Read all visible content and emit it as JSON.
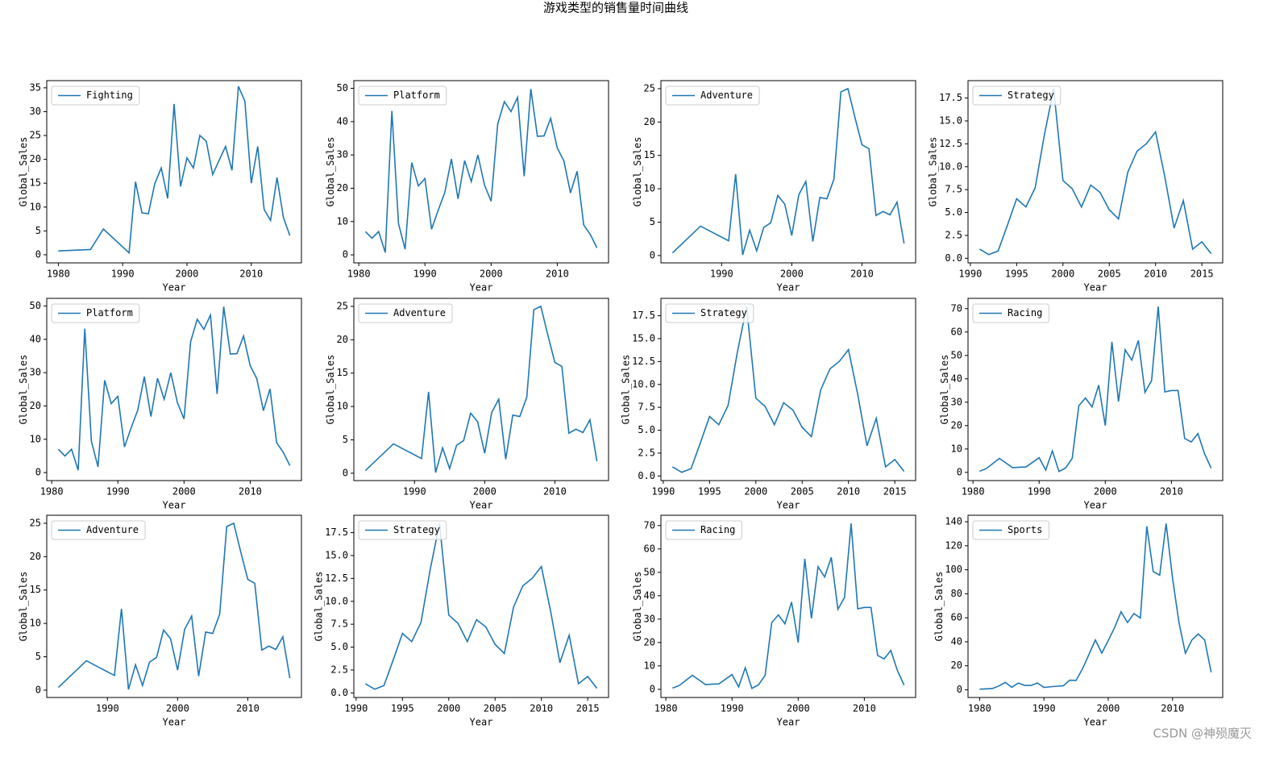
{
  "title": "游戏类型的销售量时间曲线",
  "watermark": "CSDN @神殒魔灭",
  "chart_data": [
    {
      "type": "line",
      "xlabel": "Year",
      "ylabel": "Global_Sales",
      "legend": "upper left",
      "x": [
        1980,
        1985,
        1987,
        1991,
        1992,
        1993,
        1994,
        1995,
        1996,
        1997,
        1998,
        1999,
        2000,
        2001,
        2002,
        2003,
        2004,
        2005,
        2006,
        2007,
        2008,
        2009,
        2010,
        2011,
        2012,
        2013,
        2014,
        2015,
        2016
      ],
      "series": [
        {
          "name": "Fighting",
          "color": "#1f77b4",
          "values": [
            0.8,
            1.1,
            5.4,
            0.4,
            15.3,
            8.8,
            8.6,
            14.9,
            18.2,
            11.8,
            31.6,
            14.3,
            20.3,
            18.2,
            25,
            23.8,
            16.8,
            19.8,
            22.7,
            17.7,
            35.3,
            32.2,
            15,
            22.7,
            9.5,
            7.2,
            16.2,
            7.8,
            4
          ]
        }
      ],
      "xlim": [
        1978.2,
        2017.8
      ],
      "xticks": [
        1980,
        1990,
        2000,
        2010
      ],
      "ylim": [
        -1.7,
        36.5
      ],
      "yticks": [
        0,
        5,
        10,
        15,
        20,
        25,
        30,
        35
      ]
    },
    {
      "type": "line",
      "xlabel": "Year",
      "ylabel": "Global_Sales",
      "legend": "upper left",
      "x": [
        1981,
        1982,
        1983,
        1984,
        1985,
        1986,
        1987,
        1988,
        1989,
        1990,
        1991,
        1992,
        1993,
        1994,
        1995,
        1996,
        1997,
        1998,
        1999,
        2000,
        2001,
        2002,
        2003,
        2004,
        2005,
        2006,
        2007,
        2008,
        2009,
        2010,
        2011,
        2012,
        2013,
        2014,
        2015,
        2016
      ],
      "series": [
        {
          "name": "Platform",
          "color": "#1f77b4",
          "values": [
            7.0,
            5.0,
            7.0,
            0.7,
            43.2,
            9.4,
            1.7,
            27.7,
            20.7,
            22.9,
            7.7,
            13.4,
            18.7,
            28.8,
            16.8,
            28.3,
            22.0,
            30.0,
            21.0,
            16.1,
            39.3,
            46.0,
            43.0,
            47.3,
            23.6,
            49.8,
            35.6,
            35.7,
            41.0,
            32.1,
            28.2,
            18.6,
            25.1,
            9.0,
            6.1,
            2.1
          ]
        }
      ],
      "xlim": [
        1979.25,
        2017.75
      ],
      "xticks": [
        1980,
        1990,
        2000,
        2010
      ],
      "ylim": [
        -2.4,
        52.3
      ],
      "yticks": [
        0,
        10,
        20,
        30,
        40,
        50
      ]
    },
    {
      "type": "line",
      "xlabel": "Year",
      "ylabel": "Global_Sales",
      "legend": "upper left",
      "x": [
        1983,
        1987,
        1991,
        1992,
        1993,
        1994,
        1995,
        1996,
        1997,
        1998,
        1999,
        2000,
        2001,
        2002,
        2003,
        2004,
        2005,
        2006,
        2007,
        2008,
        2009,
        2010,
        2011,
        2012,
        2013,
        2014,
        2015,
        2016
      ],
      "series": [
        {
          "name": "Adventure",
          "color": "#1f77b4",
          "values": [
            0.4,
            4.4,
            2.2,
            12.2,
            0.1,
            3.8,
            0.7,
            4.2,
            4.9,
            9.0,
            7.7,
            3.0,
            9.1,
            11.1,
            2.1,
            8.7,
            8.5,
            11.4,
            24.5,
            25.0,
            20.7,
            16.6,
            16.0,
            6.0,
            6.6,
            6.1,
            8.0,
            1.8
          ]
        }
      ],
      "xlim": [
        1981.35,
        2017.65
      ],
      "xticks": [
        1990,
        2000,
        2010
      ],
      "ylim": [
        -1.1,
        26.2
      ],
      "yticks": [
        0,
        5,
        10,
        15,
        20,
        25
      ]
    },
    {
      "type": "line",
      "xlabel": "Year",
      "ylabel": "Global_Sales",
      "legend": "upper left",
      "x": [
        1991,
        1992,
        1993,
        1994,
        1995,
        1996,
        1997,
        1998,
        1999,
        2000,
        2001,
        2002,
        2003,
        2004,
        2005,
        2006,
        2007,
        2008,
        2009,
        2010,
        2011,
        2012,
        2013,
        2014,
        2015,
        2016
      ],
      "series": [
        {
          "name": "Strategy",
          "color": "#1f77b4",
          "values": [
            1.0,
            0.4,
            0.8,
            3.6,
            6.5,
            5.6,
            7.7,
            13.5,
            18.5,
            8.5,
            7.6,
            5.6,
            8.0,
            7.2,
            5.3,
            4.3,
            9.4,
            11.7,
            12.5,
            13.8,
            8.9,
            3.3,
            6.3,
            1.0,
            1.8,
            0.5
          ]
        }
      ],
      "xlim": [
        1989.75,
        2017.25
      ],
      "xticks": [
        1990,
        1995,
        2000,
        2005,
        2010,
        2015
      ],
      "ylim": [
        -0.5,
        19.4
      ],
      "yticks": [
        {
          "value": 0,
          "label": "0.0"
        },
        2.5,
        {
          "value": 5,
          "label": "5.0"
        },
        7.5,
        {
          "value": 10,
          "label": "10.0"
        },
        12.5,
        {
          "value": 15,
          "label": "15.0"
        },
        17.5
      ]
    },
    {
      "type": "line",
      "xlabel": "Year",
      "ylabel": "Global_Sales",
      "legend": "upper left",
      "x": [
        1981,
        1982,
        1983,
        1984,
        1985,
        1986,
        1987,
        1988,
        1989,
        1990,
        1991,
        1992,
        1993,
        1994,
        1995,
        1996,
        1997,
        1998,
        1999,
        2000,
        2001,
        2002,
        2003,
        2004,
        2005,
        2006,
        2007,
        2008,
        2009,
        2010,
        2011,
        2012,
        2013,
        2014,
        2015,
        2016
      ],
      "series": [
        {
          "name": "Platform",
          "color": "#1f77b4",
          "values": [
            7.0,
            5.0,
            7.0,
            0.7,
            43.2,
            9.4,
            1.7,
            27.7,
            20.7,
            22.9,
            7.7,
            13.4,
            18.7,
            28.8,
            16.8,
            28.3,
            22.0,
            30.0,
            21.0,
            16.1,
            39.3,
            46.0,
            43.0,
            47.3,
            23.6,
            49.8,
            35.6,
            35.7,
            41.0,
            32.1,
            28.2,
            18.6,
            25.1,
            9.0,
            6.1,
            2.1
          ]
        }
      ],
      "xlim": [
        1979.25,
        2017.75
      ],
      "xticks": [
        1980,
        1990,
        2000,
        2010
      ],
      "ylim": [
        -2.4,
        52.3
      ],
      "yticks": [
        0,
        10,
        20,
        30,
        40,
        50
      ]
    },
    {
      "type": "line",
      "xlabel": "Year",
      "ylabel": "Global_Sales",
      "legend": "upper left",
      "x": [
        1983,
        1987,
        1991,
        1992,
        1993,
        1994,
        1995,
        1996,
        1997,
        1998,
        1999,
        2000,
        2001,
        2002,
        2003,
        2004,
        2005,
        2006,
        2007,
        2008,
        2009,
        2010,
        2011,
        2012,
        2013,
        2014,
        2015,
        2016
      ],
      "series": [
        {
          "name": "Adventure",
          "color": "#1f77b4",
          "values": [
            0.4,
            4.4,
            2.2,
            12.2,
            0.1,
            3.8,
            0.7,
            4.2,
            4.9,
            9.0,
            7.7,
            3.0,
            9.1,
            11.1,
            2.1,
            8.7,
            8.5,
            11.4,
            24.5,
            25.0,
            20.7,
            16.6,
            16.0,
            6.0,
            6.6,
            6.1,
            8.0,
            1.8
          ]
        }
      ],
      "xlim": [
        1981.35,
        2017.65
      ],
      "xticks": [
        1990,
        2000,
        2010
      ],
      "ylim": [
        -1.1,
        26.2
      ],
      "yticks": [
        0,
        5,
        10,
        15,
        20,
        25
      ]
    },
    {
      "type": "line",
      "xlabel": "Year",
      "ylabel": "Global_Sales",
      "legend": "upper left",
      "x": [
        1991,
        1992,
        1993,
        1994,
        1995,
        1996,
        1997,
        1998,
        1999,
        2000,
        2001,
        2002,
        2003,
        2004,
        2005,
        2006,
        2007,
        2008,
        2009,
        2010,
        2011,
        2012,
        2013,
        2014,
        2015,
        2016
      ],
      "series": [
        {
          "name": "Strategy",
          "color": "#1f77b4",
          "values": [
            1.0,
            0.4,
            0.8,
            3.6,
            6.5,
            5.6,
            7.7,
            13.5,
            18.5,
            8.5,
            7.6,
            5.6,
            8.0,
            7.2,
            5.3,
            4.3,
            9.4,
            11.7,
            12.5,
            13.8,
            8.9,
            3.3,
            6.3,
            1.0,
            1.8,
            0.5
          ]
        }
      ],
      "xlim": [
        1989.75,
        2017.25
      ],
      "xticks": [
        1990,
        1995,
        2000,
        2005,
        2010,
        2015
      ],
      "ylim": [
        -0.5,
        19.4
      ],
      "yticks": [
        {
          "value": 0,
          "label": "0.0"
        },
        2.5,
        {
          "value": 5,
          "label": "5.0"
        },
        7.5,
        {
          "value": 10,
          "label": "10.0"
        },
        12.5,
        {
          "value": 15,
          "label": "15.0"
        },
        17.5
      ]
    },
    {
      "type": "line",
      "xlabel": "Year",
      "ylabel": "Global_Sales",
      "legend": "upper left",
      "x": [
        1981,
        1982,
        1984,
        1986,
        1987,
        1988,
        1990,
        1991,
        1992,
        1993,
        1994,
        1995,
        1996,
        1997,
        1998,
        1999,
        2000,
        2001,
        2002,
        2003,
        2004,
        2005,
        2006,
        2007,
        2008,
        2009,
        2010,
        2011,
        2012,
        2013,
        2014,
        2015,
        2016
      ],
      "series": [
        {
          "name": "Racing",
          "color": "#1f77b4",
          "values": [
            0.5,
            1.6,
            6.0,
            2.0,
            2.2,
            2.3,
            6.3,
            1.0,
            9.2,
            0.4,
            1.9,
            6.0,
            28.5,
            31.8,
            28.0,
            37.3,
            20.0,
            55.8,
            30.3,
            52.4,
            48.0,
            56.4,
            34.2,
            39.3,
            70.9,
            34.4,
            35.0,
            35.0,
            14.5,
            13.0,
            16.6,
            8.0,
            1.8
          ]
        }
      ],
      "xlim": [
        1979.25,
        2017.75
      ],
      "xticks": [
        1980,
        1990,
        2000,
        2010
      ],
      "ylim": [
        -3.5,
        74.4
      ],
      "yticks": [
        0,
        10,
        20,
        30,
        40,
        50,
        60,
        70
      ]
    },
    {
      "type": "line",
      "xlabel": "Year",
      "ylabel": "Global_Sales",
      "legend": "upper left",
      "x": [
        1983,
        1987,
        1991,
        1992,
        1993,
        1994,
        1995,
        1996,
        1997,
        1998,
        1999,
        2000,
        2001,
        2002,
        2003,
        2004,
        2005,
        2006,
        2007,
        2008,
        2009,
        2010,
        2011,
        2012,
        2013,
        2014,
        2015,
        2016
      ],
      "series": [
        {
          "name": "Adventure",
          "color": "#1f77b4",
          "values": [
            0.4,
            4.4,
            2.2,
            12.2,
            0.1,
            3.8,
            0.7,
            4.2,
            4.9,
            9.0,
            7.7,
            3.0,
            9.1,
            11.1,
            2.1,
            8.7,
            8.5,
            11.4,
            24.5,
            25.0,
            20.7,
            16.6,
            16.0,
            6.0,
            6.6,
            6.1,
            8.0,
            1.8
          ]
        }
      ],
      "xlim": [
        1981.35,
        2017.65
      ],
      "xticks": [
        1990,
        2000,
        2010
      ],
      "ylim": [
        -1.1,
        26.2
      ],
      "yticks": [
        0,
        5,
        10,
        15,
        20,
        25
      ]
    },
    {
      "type": "line",
      "xlabel": "Year",
      "ylabel": "Global_Sales",
      "legend": "upper left",
      "x": [
        1991,
        1992,
        1993,
        1994,
        1995,
        1996,
        1997,
        1998,
        1999,
        2000,
        2001,
        2002,
        2003,
        2004,
        2005,
        2006,
        2007,
        2008,
        2009,
        2010,
        2011,
        2012,
        2013,
        2014,
        2015,
        2016
      ],
      "series": [
        {
          "name": "Strategy",
          "color": "#1f77b4",
          "values": [
            1.0,
            0.4,
            0.8,
            3.6,
            6.5,
            5.6,
            7.7,
            13.5,
            18.5,
            8.5,
            7.6,
            5.6,
            8.0,
            7.2,
            5.3,
            4.3,
            9.4,
            11.7,
            12.5,
            13.8,
            8.9,
            3.3,
            6.3,
            1.0,
            1.8,
            0.5
          ]
        }
      ],
      "xlim": [
        1989.75,
        2017.25
      ],
      "xticks": [
        1990,
        1995,
        2000,
        2005,
        2010,
        2015
      ],
      "ylim": [
        -0.5,
        19.4
      ],
      "yticks": [
        {
          "value": 0,
          "label": "0.0"
        },
        2.5,
        {
          "value": 5,
          "label": "5.0"
        },
        7.5,
        {
          "value": 10,
          "label": "10.0"
        },
        12.5,
        {
          "value": 15,
          "label": "15.0"
        },
        17.5
      ]
    },
    {
      "type": "line",
      "xlabel": "Year",
      "ylabel": "Global_Sales",
      "legend": "upper left",
      "x": [
        1981,
        1982,
        1984,
        1986,
        1987,
        1988,
        1990,
        1991,
        1992,
        1993,
        1994,
        1995,
        1996,
        1997,
        1998,
        1999,
        2000,
        2001,
        2002,
        2003,
        2004,
        2005,
        2006,
        2007,
        2008,
        2009,
        2010,
        2011,
        2012,
        2013,
        2014,
        2015,
        2016
      ],
      "series": [
        {
          "name": "Racing",
          "color": "#1f77b4",
          "values": [
            0.5,
            1.6,
            6.0,
            2.0,
            2.2,
            2.3,
            6.3,
            1.0,
            9.2,
            0.4,
            1.9,
            6.0,
            28.5,
            31.8,
            28.0,
            37.3,
            20.0,
            55.8,
            30.3,
            52.4,
            48.0,
            56.4,
            34.2,
            39.3,
            70.9,
            34.4,
            35.0,
            35.0,
            14.5,
            13.0,
            16.6,
            8.0,
            1.8
          ]
        }
      ],
      "xlim": [
        1979.25,
        2017.75
      ],
      "xticks": [
        1980,
        1990,
        2000,
        2010
      ],
      "ylim": [
        -3.5,
        74.4
      ],
      "yticks": [
        0,
        10,
        20,
        30,
        40,
        50,
        60,
        70
      ]
    },
    {
      "type": "line",
      "xlabel": "Year",
      "ylabel": "Global_Sales",
      "legend": "upper left",
      "x": [
        1980,
        1981,
        1982,
        1983,
        1984,
        1985,
        1986,
        1987,
        1988,
        1989,
        1990,
        1991,
        1992,
        1993,
        1994,
        1995,
        1996,
        1997,
        1998,
        1999,
        2000,
        2001,
        2002,
        2003,
        2004,
        2005,
        2006,
        2007,
        2008,
        2009,
        2010,
        2011,
        2012,
        2013,
        2014,
        2015,
        2016
      ],
      "series": [
        {
          "name": "Sports",
          "color": "#1f77b4",
          "values": [
            0.5,
            0.8,
            1.1,
            3.2,
            6.2,
            2.1,
            5.6,
            3.7,
            3.6,
            5.7,
            2.0,
            2.5,
            3.0,
            3.3,
            8.0,
            7.8,
            17.5,
            29.4,
            41.5,
            30.6,
            41.0,
            52.0,
            65.0,
            56.0,
            63.5,
            59.8,
            136.2,
            98.5,
            95.5,
            138.5,
            93.0,
            56.0,
            30.4,
            41.5,
            46.5,
            41.5,
            14.6
          ]
        }
      ],
      "xlim": [
        1978.2,
        2017.8
      ],
      "xticks": [
        1980,
        1990,
        2000,
        2010
      ],
      "ylim": [
        -6.4,
        145.4
      ],
      "yticks": [
        0,
        20,
        40,
        60,
        80,
        100,
        120,
        140
      ]
    }
  ]
}
